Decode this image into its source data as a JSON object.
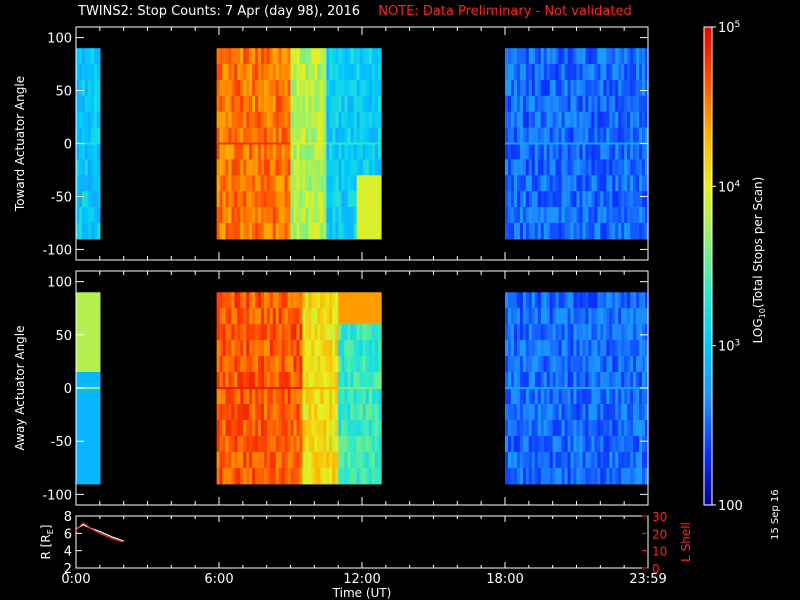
{
  "header": {
    "title": "TWINS2: Stop Counts:  7 Apr (day  98), 2016",
    "note": "NOTE: Data Preliminary - Not validated"
  },
  "stamp": "15 Sep 16",
  "colors": {
    "background": "#000000",
    "note_red": "#ff2020",
    "colormap": [
      "#00008f",
      "#0a30ff",
      "#1e90ff",
      "#00c8ff",
      "#30e8c8",
      "#90f070",
      "#e8f020",
      "#ffb000",
      "#ff5000",
      "#e80000"
    ]
  },
  "chart_data": [
    {
      "type": "heatmap",
      "panel": "top",
      "ylabel": "Toward Actuator Angle",
      "ylim": [
        -110,
        110
      ],
      "y_ticks": [
        "100",
        "50",
        "0",
        "-50",
        "-100"
      ],
      "y_tick_values": [
        100,
        50,
        0,
        -50,
        -100
      ],
      "xlim_hours": [
        0,
        24
      ],
      "data_y_range": [
        -90,
        90
      ],
      "segments": [
        {
          "start_hour": 0.0,
          "end_hour": 1.0,
          "level": 0.33,
          "note": "light blue, darker near -40"
        },
        {
          "start_hour": 5.9,
          "end_hour": 9.0,
          "level": 0.85,
          "note": "orange/red streaks"
        },
        {
          "start_hour": 9.0,
          "end_hour": 10.5,
          "level": 0.6,
          "note": "green/yellow"
        },
        {
          "start_hour": 10.5,
          "end_hour": 12.8,
          "level": 0.35,
          "note": "blue-cyan with yellow lower-right"
        },
        {
          "start_hour": 18.0,
          "end_hour": 24.0,
          "level": 0.18,
          "note": "blue"
        }
      ]
    },
    {
      "type": "heatmap",
      "panel": "middle",
      "ylabel": "Away Actuator Angle",
      "ylim": [
        -110,
        110
      ],
      "y_ticks": [
        "100",
        "50",
        "0",
        "-50",
        "-100"
      ],
      "y_tick_values": [
        100,
        50,
        0,
        -50,
        -100
      ],
      "xlim_hours": [
        0,
        24
      ],
      "data_y_range": [
        -90,
        90
      ],
      "segments": [
        {
          "start_hour": 0.0,
          "end_hour": 1.0,
          "level": 0.5,
          "note": "yellow-green top, blue bottom"
        },
        {
          "start_hour": 5.9,
          "end_hour": 9.5,
          "level": 0.88,
          "note": "orange/red"
        },
        {
          "start_hour": 9.5,
          "end_hour": 11.0,
          "level": 0.7,
          "note": "yellow-orange"
        },
        {
          "start_hour": 11.0,
          "end_hour": 12.8,
          "level": 0.45,
          "note": "blue-cyan with orange top"
        },
        {
          "start_hour": 18.0,
          "end_hour": 24.0,
          "level": 0.18,
          "note": "blue"
        }
      ]
    },
    {
      "type": "line",
      "panel": "bottom",
      "ylabel": "R [R",
      "ylabel_sub": "E",
      "ylim": [
        2,
        8
      ],
      "y_ticks": [
        "8",
        "6",
        "4",
        "2"
      ],
      "y_tick_values": [
        8,
        6,
        4,
        2
      ],
      "right_ylabel": "L Shell",
      "right_ylim": [
        0,
        30
      ],
      "right_y_ticks": [
        "30",
        "20",
        "10",
        "0"
      ],
      "right_y_tick_values": [
        30,
        20,
        10,
        0
      ],
      "xlabel": "Time (UT)",
      "x_ticks": [
        "0:00",
        "6:00",
        "12:00",
        "18:00",
        "23:59"
      ],
      "x_tick_values": [
        0,
        6,
        12,
        18,
        24
      ],
      "series": [
        {
          "name": "R",
          "color": "#ffffff",
          "x": [
            0.0,
            0.3,
            0.6,
            1.0,
            1.5,
            2.0
          ],
          "y": [
            6.5,
            7.0,
            6.6,
            6.2,
            5.6,
            5.1
          ]
        },
        {
          "name": "L Shell",
          "color": "#ff2020",
          "axis": "right",
          "x": [
            0.0,
            0.3,
            0.6,
            1.0,
            1.5,
            2.0
          ],
          "y": [
            22,
            26,
            23,
            20,
            17,
            15
          ]
        }
      ]
    },
    {
      "type": "colorbar",
      "label_prefix": "LOG",
      "label_sub": "10",
      "label_suffix": "(Total Stops per Scan)",
      "range": [
        100,
        100000
      ],
      "ticks": [
        {
          "base": "10",
          "exp": "5",
          "value": 100000
        },
        {
          "base": "10",
          "exp": "4",
          "value": 10000
        },
        {
          "base": "10",
          "exp": "3",
          "value": 1000
        },
        {
          "base": "100",
          "exp": "",
          "value": 100
        }
      ]
    }
  ]
}
